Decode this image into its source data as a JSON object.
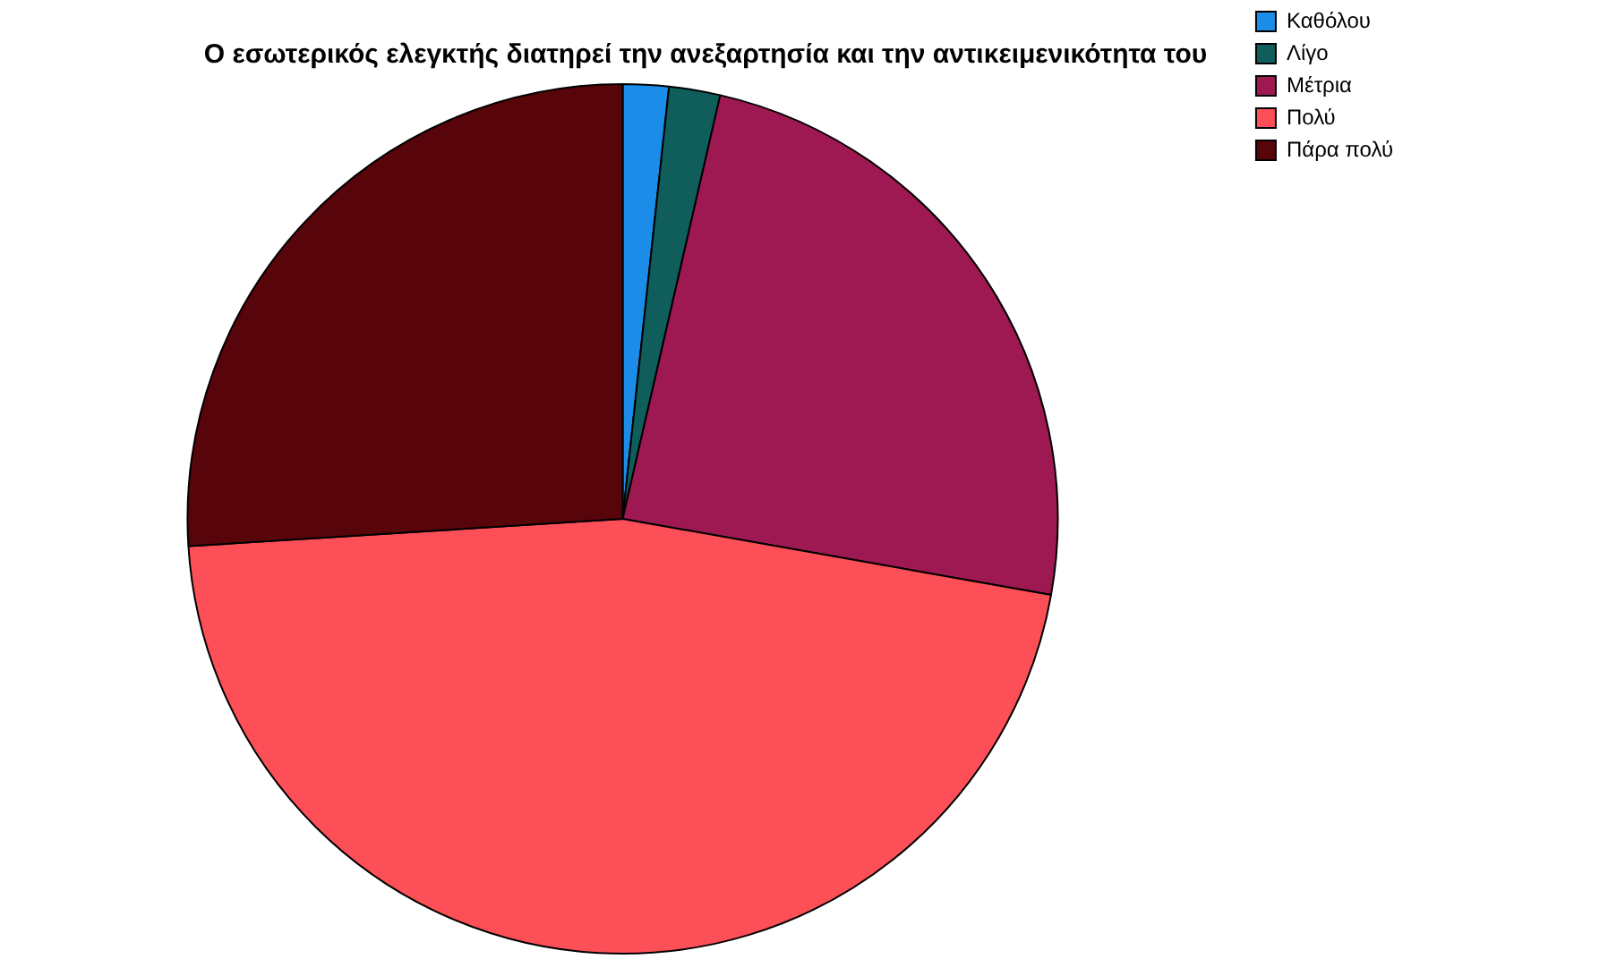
{
  "chart_data": {
    "type": "pie",
    "title": "Ο εσωτερικός ελεγκτής διατηρεί την ανεξαρτησία και την αντικειμενικότητα του",
    "categories": [
      "Καθόλου",
      "Λίγο",
      "Μέτρια",
      "Πολύ",
      "Πάρα πολύ"
    ],
    "values": [
      1.7,
      1.9,
      24.2,
      46.2,
      26.0
    ],
    "colors": [
      "#1b8de8",
      "#0f5e5c",
      "#9e1951",
      "#fd4f57",
      "#57040a"
    ],
    "legend": "top right"
  }
}
